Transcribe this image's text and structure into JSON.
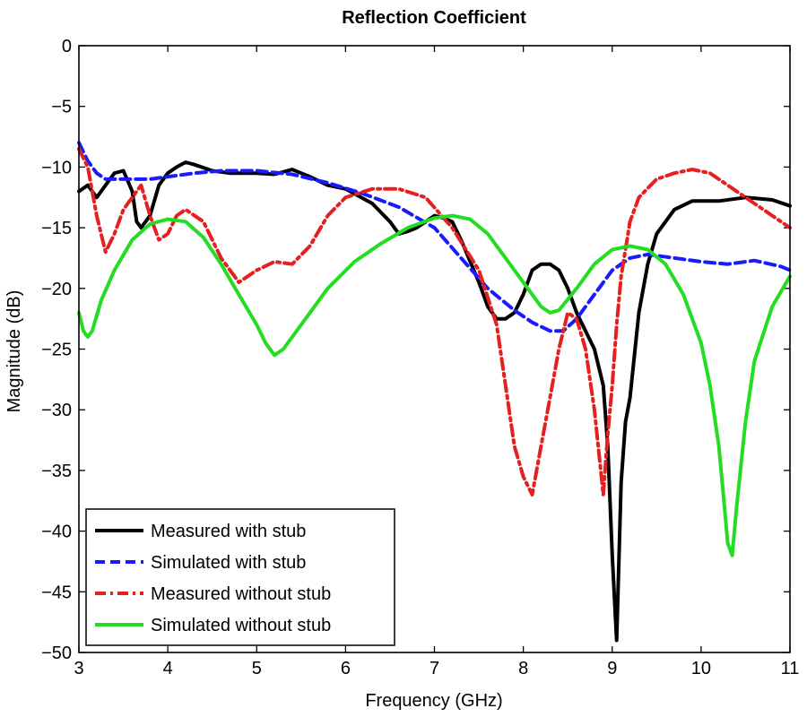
{
  "chart_data": {
    "type": "line",
    "title": "Reflection Coefficient",
    "xlabel": "Frequency (GHz)",
    "ylabel": "Magnitude (dB)",
    "xlim": [
      3,
      11
    ],
    "ylim": [
      -50,
      0
    ],
    "grid": false,
    "legend_position": "bottom-left",
    "xticks": [
      3,
      4,
      5,
      6,
      7,
      8,
      9,
      10,
      11
    ],
    "yticks": [
      0,
      -5,
      -10,
      -15,
      -20,
      -25,
      -30,
      -35,
      -40,
      -45,
      -50
    ],
    "xtick_labels": [
      "3",
      "4",
      "5",
      "6",
      "7",
      "8",
      "9",
      "10",
      "11"
    ],
    "ytick_labels": [
      "0",
      "−5",
      "−10",
      "−15",
      "−20",
      "−25",
      "−30",
      "−35",
      "−40",
      "−45",
      "−50"
    ],
    "series": [
      {
        "name": "Measured with stub",
        "color": "#000000",
        "style": "solid",
        "x": [
          3.0,
          3.1,
          3.2,
          3.3,
          3.4,
          3.5,
          3.6,
          3.65,
          3.7,
          3.8,
          3.9,
          4.0,
          4.1,
          4.2,
          4.3,
          4.5,
          4.7,
          5.0,
          5.2,
          5.4,
          5.6,
          5.8,
          6.0,
          6.3,
          6.5,
          6.6,
          6.7,
          6.8,
          6.9,
          7.0,
          7.1,
          7.2,
          7.3,
          7.5,
          7.6,
          7.7,
          7.8,
          7.9,
          8.0,
          8.1,
          8.2,
          8.3,
          8.4,
          8.5,
          8.6,
          8.7,
          8.8,
          8.9,
          8.95,
          9.0,
          9.05,
          9.1,
          9.15,
          9.2,
          9.3,
          9.4,
          9.5,
          9.7,
          9.9,
          10.2,
          10.5,
          10.8,
          11.0
        ],
        "values": [
          -12.0,
          -11.5,
          -12.5,
          -11.5,
          -10.5,
          -10.3,
          -12.0,
          -14.5,
          -15.0,
          -14.0,
          -11.5,
          -10.5,
          -10.0,
          -9.6,
          -9.8,
          -10.3,
          -10.5,
          -10.5,
          -10.6,
          -10.2,
          -10.8,
          -11.5,
          -11.8,
          -13.0,
          -14.5,
          -15.5,
          -15.3,
          -15.0,
          -14.5,
          -14.0,
          -14.2,
          -14.5,
          -16.0,
          -19.5,
          -21.5,
          -22.5,
          -22.5,
          -22.0,
          -20.5,
          -18.5,
          -18.0,
          -18.0,
          -18.5,
          -20.0,
          -22.0,
          -23.5,
          -25.0,
          -28.0,
          -33.0,
          -42.0,
          -49.0,
          -36.0,
          -31.0,
          -29.0,
          -22.0,
          -18.0,
          -15.5,
          -13.5,
          -12.8,
          -12.8,
          -12.5,
          -12.7,
          -13.2
        ]
      },
      {
        "name": "Simulated with stub",
        "color": "#1a1aff",
        "style": "dashed",
        "x": [
          3.0,
          3.1,
          3.2,
          3.3,
          3.5,
          3.8,
          4.0,
          4.3,
          4.6,
          5.0,
          5.4,
          5.8,
          6.2,
          6.6,
          7.0,
          7.3,
          7.6,
          7.9,
          8.1,
          8.3,
          8.45,
          8.6,
          8.8,
          9.0,
          9.2,
          9.4,
          9.7,
          10.0,
          10.3,
          10.6,
          10.9,
          11.0
        ],
        "values": [
          -8.0,
          -9.5,
          -10.5,
          -11.0,
          -11.0,
          -11.0,
          -10.8,
          -10.5,
          -10.3,
          -10.3,
          -10.6,
          -11.3,
          -12.2,
          -13.3,
          -15.0,
          -17.5,
          -20.0,
          -21.8,
          -22.8,
          -23.5,
          -23.5,
          -22.5,
          -20.5,
          -18.5,
          -17.5,
          -17.2,
          -17.5,
          -17.8,
          -18.0,
          -17.7,
          -18.2,
          -18.5
        ]
      },
      {
        "name": "Measured without stub",
        "color": "#e62020",
        "style": "dashdot",
        "x": [
          3.0,
          3.1,
          3.2,
          3.3,
          3.4,
          3.5,
          3.6,
          3.7,
          3.8,
          3.9,
          4.0,
          4.1,
          4.2,
          4.4,
          4.6,
          4.8,
          5.0,
          5.2,
          5.4,
          5.6,
          5.8,
          6.0,
          6.3,
          6.6,
          6.9,
          7.2,
          7.5,
          7.7,
          7.8,
          7.9,
          8.0,
          8.1,
          8.2,
          8.3,
          8.4,
          8.5,
          8.6,
          8.7,
          8.8,
          8.9,
          8.95,
          9.0,
          9.05,
          9.1,
          9.2,
          9.3,
          9.5,
          9.7,
          9.9,
          10.1,
          10.3,
          10.6,
          10.8,
          11.0
        ],
        "values": [
          -8.5,
          -10.0,
          -14.0,
          -17.0,
          -15.5,
          -13.5,
          -12.5,
          -11.5,
          -14.0,
          -16.0,
          -15.5,
          -14.0,
          -13.5,
          -14.5,
          -17.5,
          -19.5,
          -18.5,
          -17.8,
          -18.0,
          -16.5,
          -14.0,
          -12.5,
          -11.8,
          -11.8,
          -12.5,
          -15.0,
          -18.5,
          -23.0,
          -28.0,
          -33.0,
          -35.5,
          -37.0,
          -33.0,
          -29.0,
          -25.0,
          -22.0,
          -22.5,
          -25.0,
          -30.0,
          -37.0,
          -32.0,
          -28.0,
          -23.0,
          -19.0,
          -14.5,
          -12.5,
          -11.0,
          -10.5,
          -10.2,
          -10.5,
          -11.5,
          -13.0,
          -14.0,
          -15.0
        ]
      },
      {
        "name": "Simulated without stub",
        "color": "#22dd22",
        "style": "solid",
        "x": [
          3.0,
          3.05,
          3.1,
          3.15,
          3.25,
          3.4,
          3.6,
          3.8,
          4.0,
          4.2,
          4.4,
          4.6,
          4.8,
          5.0,
          5.1,
          5.2,
          5.3,
          5.5,
          5.8,
          6.1,
          6.4,
          6.7,
          7.0,
          7.2,
          7.4,
          7.6,
          7.8,
          8.0,
          8.2,
          8.3,
          8.4,
          8.6,
          8.8,
          9.0,
          9.2,
          9.4,
          9.6,
          9.8,
          10.0,
          10.1,
          10.2,
          10.25,
          10.3,
          10.35,
          10.4,
          10.5,
          10.6,
          10.8,
          11.0
        ],
        "values": [
          -22.0,
          -23.5,
          -24.0,
          -23.5,
          -21.0,
          -18.5,
          -16.0,
          -14.7,
          -14.3,
          -14.5,
          -15.8,
          -18.0,
          -20.5,
          -23.0,
          -24.5,
          -25.5,
          -25.0,
          -23.0,
          -20.0,
          -17.8,
          -16.3,
          -15.0,
          -14.2,
          -14.0,
          -14.3,
          -15.5,
          -17.5,
          -19.5,
          -21.5,
          -22.0,
          -21.8,
          -20.0,
          -18.0,
          -16.8,
          -16.5,
          -16.8,
          -18.0,
          -20.5,
          -24.5,
          -28.0,
          -33.0,
          -37.0,
          -41.0,
          -42.0,
          -38.0,
          -31.0,
          -26.0,
          -21.5,
          -19.0
        ]
      }
    ]
  }
}
